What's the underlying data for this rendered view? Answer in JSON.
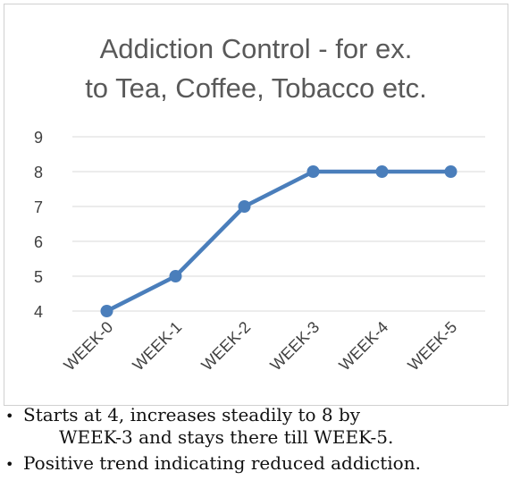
{
  "chart_data": {
    "type": "line",
    "title_lines": [
      "Addiction Control - for ex.",
      "to Tea, Coffee, Tobacco etc."
    ],
    "categories": [
      "WEEK-0",
      "WEEK-1",
      "WEEK-2",
      "WEEK-3",
      "WEEK-4",
      "WEEK-5"
    ],
    "series": [
      {
        "values": [
          4,
          5,
          7,
          8,
          8,
          8
        ]
      }
    ],
    "ylim": [
      4,
      9
    ],
    "y_ticks": [
      "4",
      "5",
      "6",
      "7",
      "8",
      "9"
    ],
    "grid": true,
    "legend": "none",
    "colors": {
      "line": "#4a7ebb",
      "marker": "#4a7ebb",
      "grid": "#d9d9d9",
      "tick_text": "#404040"
    }
  },
  "notes": {
    "bullet_symbol": "•",
    "items": [
      {
        "lines": [
          "Starts at 4, increases steadily to 8 by",
          "WEEK-3 and stays there till WEEK-5."
        ]
      },
      {
        "lines": [
          "Positive trend indicating reduced addiction."
        ]
      }
    ]
  }
}
